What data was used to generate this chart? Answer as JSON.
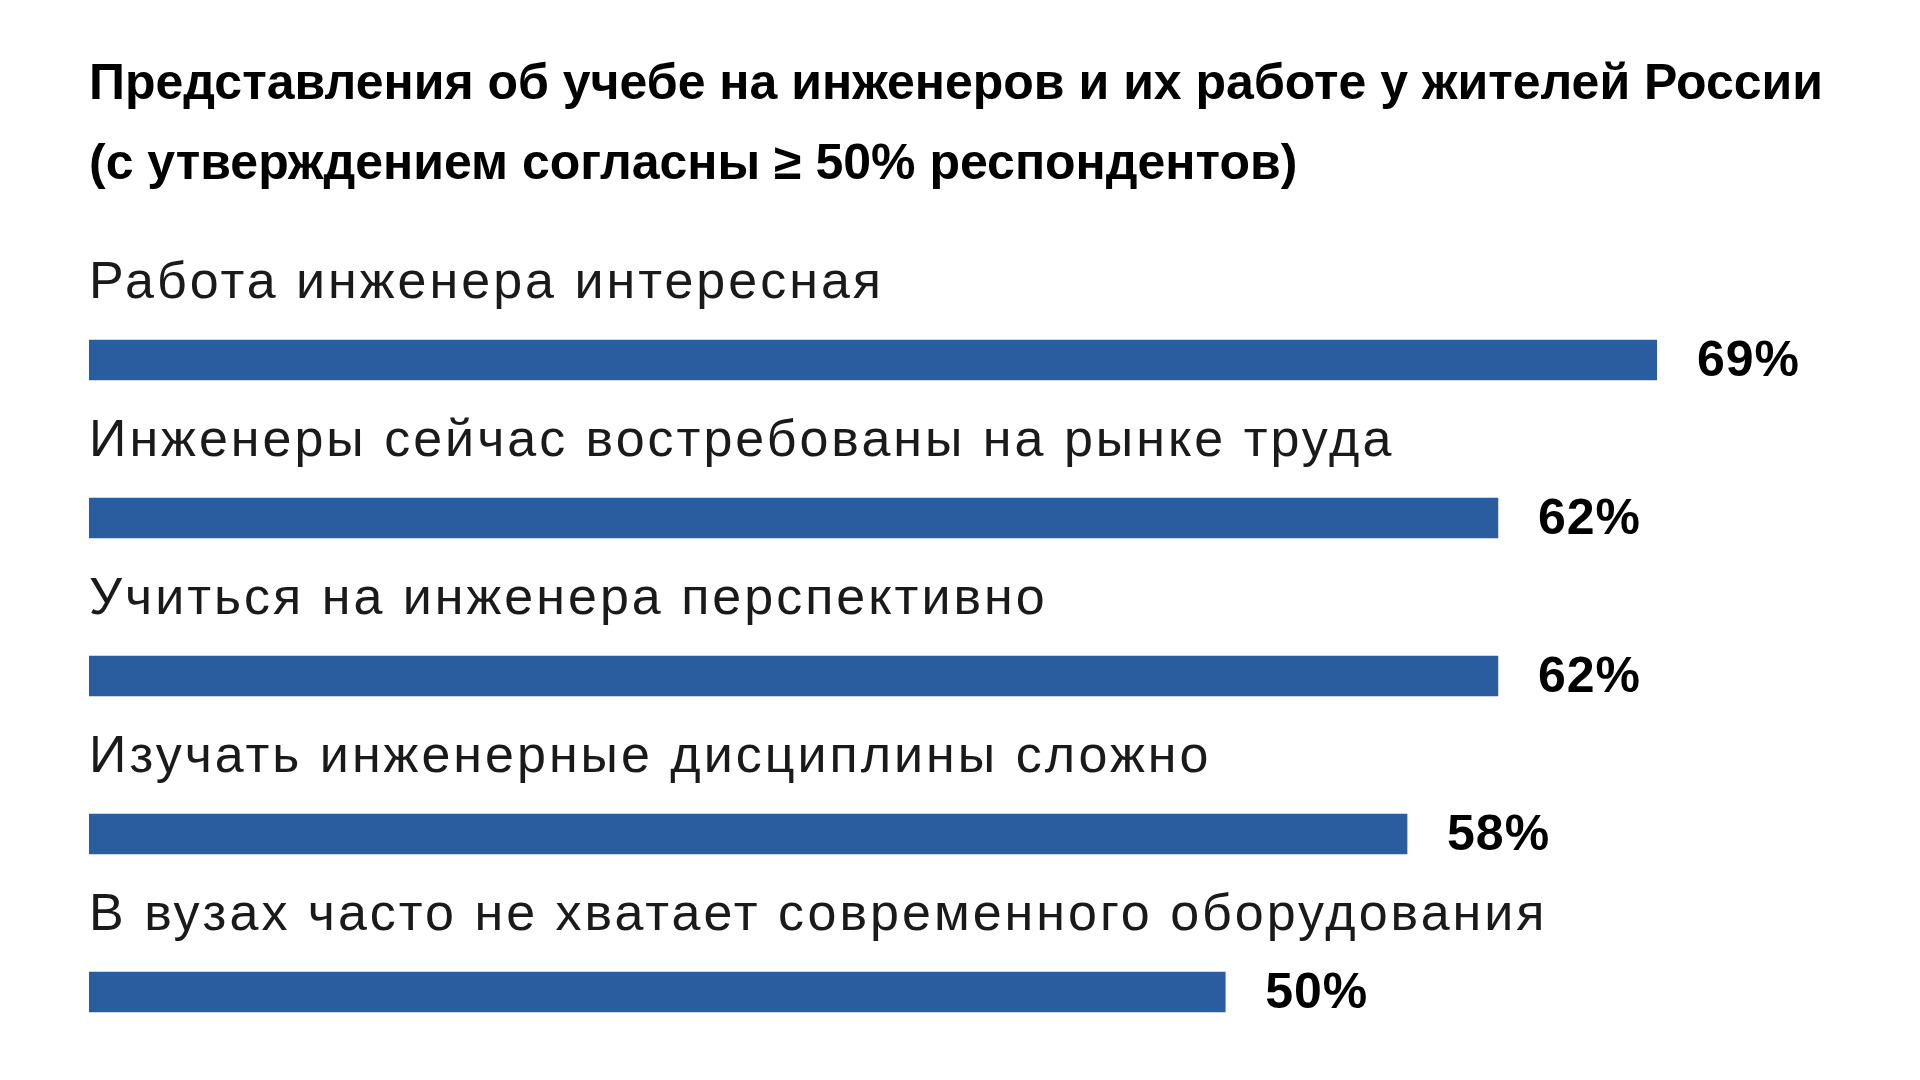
{
  "chart_data": {
    "type": "bar",
    "orientation": "horizontal",
    "title": "Представления об учебе на инженеров и их работе у жителей России (с утверждением согласны ≥ 50% респондентов)",
    "categories": [
      "Работа инженера интересная",
      "Инженеры сейчас востребованы на рынке труда",
      "Учиться на инженера перспективно",
      "Изучать инженерные дисциплины сложно",
      "В вузах часто не хватает современного оборудования"
    ],
    "values": [
      69,
      62,
      62,
      58,
      50
    ],
    "value_labels": [
      "69%",
      "62%",
      "62%",
      "58%",
      "50%"
    ],
    "color": "#2a5d9f",
    "xlim": [
      0,
      69
    ]
  }
}
